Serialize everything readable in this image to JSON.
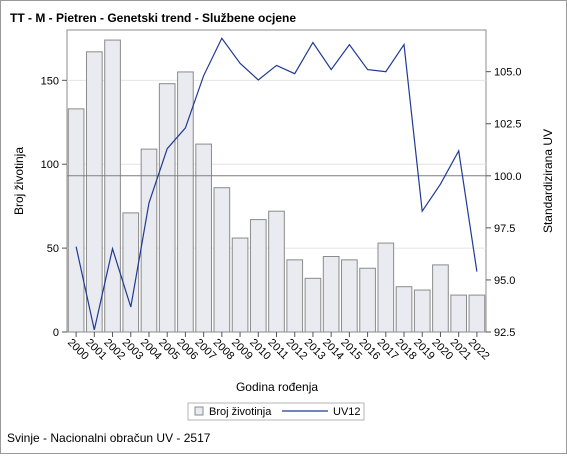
{
  "chart_data": {
    "type": "bar",
    "title": "TT - M - Pietren - Genetski trend - Službene ocjene",
    "xlabel": "Godina rođenja",
    "ylabel": "Broj životinja",
    "y2label": "Standardizirana UV",
    "footnote": "Svinje - Nacionalni obračun UV - 2517",
    "categories": [
      "2000",
      "2001",
      "2002",
      "2003",
      "2004",
      "2005",
      "2006",
      "2007",
      "2008",
      "2009",
      "2010",
      "2011",
      "2012",
      "2013",
      "2014",
      "2015",
      "2016",
      "2017",
      "2018",
      "2019",
      "2020",
      "2021",
      "2022"
    ],
    "series": [
      {
        "name": "Broj životinja",
        "kind": "bar",
        "axis": "left",
        "values": [
          133,
          167,
          174,
          71,
          109,
          148,
          155,
          112,
          86,
          56,
          67,
          72,
          43,
          32,
          45,
          43,
          38,
          53,
          27,
          25,
          40,
          22,
          22
        ],
        "color": "#e9ebf1",
        "stroke": "#8b8b8b"
      },
      {
        "name": "UV12",
        "kind": "line",
        "axis": "right",
        "values": [
          96.6,
          92.6,
          96.5,
          93.7,
          98.7,
          101.3,
          102.3,
          104.8,
          106.6,
          105.4,
          104.6,
          105.3,
          104.9,
          106.4,
          105.1,
          106.3,
          105.1,
          105.0,
          106.3,
          98.3,
          99.6,
          101.2,
          95.4
        ],
        "color": "#1f3a93"
      }
    ],
    "ylim": [
      0,
      180
    ],
    "yticks": [
      0,
      50,
      100,
      150
    ],
    "y2lim": [
      92.5,
      107.0
    ],
    "y2ticks": [
      "92.5",
      "95.0",
      "97.5",
      "100.0",
      "102.5",
      "105.0"
    ],
    "reference_line": {
      "axis": "right",
      "value": 100.0
    },
    "grid": "horizontal",
    "legend": "bottom"
  }
}
